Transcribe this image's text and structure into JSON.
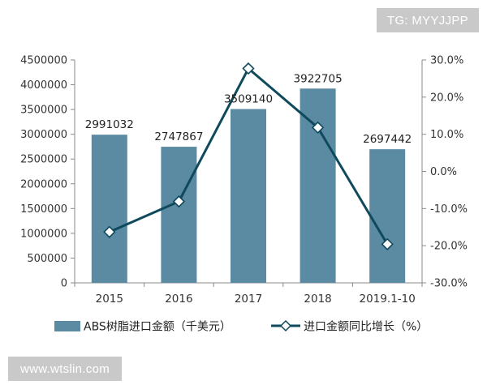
{
  "watermarks": {
    "top": "TG: MYYJJPP",
    "bottom": "www.wtslin.com"
  },
  "chart_data": {
    "type": "bar",
    "categories": [
      "2015",
      "2016",
      "2017",
      "2018",
      "2019.1-10"
    ],
    "series": [
      {
        "name": "ABS树脂进口金额（千美元）",
        "type": "bar",
        "axis": "left",
        "values": [
          2991032,
          2747867,
          3509140,
          3922705,
          2697442
        ],
        "data_labels": [
          "2991032",
          "2747867",
          "3509140",
          "3922705",
          "2697442"
        ],
        "color": "#5b8aa3"
      },
      {
        "name": "进口金额同比增长（%）",
        "type": "line",
        "axis": "right",
        "values": [
          -16.3,
          -8.1,
          27.7,
          11.8,
          -19.6
        ],
        "color": "#0f4a5c"
      }
    ],
    "y_left": {
      "min": 0,
      "max": 4500000,
      "ticks": [
        0,
        500000,
        1000000,
        1500000,
        2000000,
        2500000,
        3000000,
        3500000,
        4000000,
        4500000
      ],
      "tick_labels": [
        "0",
        "500000",
        "1000000",
        "1500000",
        "2000000",
        "2500000",
        "3000000",
        "3500000",
        "4000000",
        "4500000"
      ]
    },
    "y_right": {
      "min": -30,
      "max": 30,
      "ticks": [
        -30,
        -20,
        -10,
        0,
        10,
        20,
        30
      ],
      "tick_labels": [
        "-30.0%",
        "-20.0%",
        "-10.0%",
        "0.0%",
        "10.0%",
        "20.0%",
        "30.0%"
      ]
    },
    "legend_position": "bottom",
    "grid": false
  }
}
